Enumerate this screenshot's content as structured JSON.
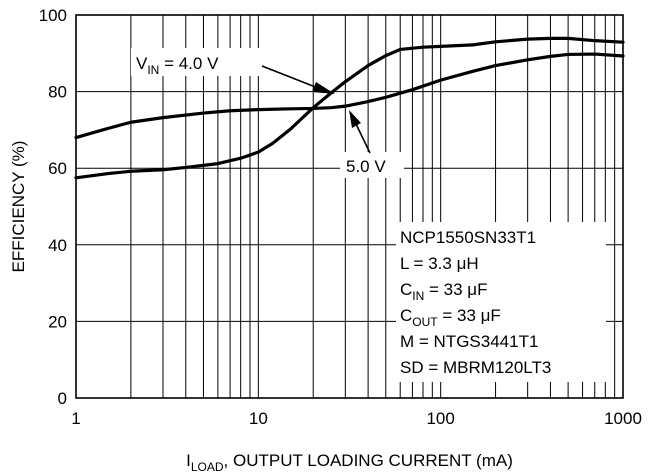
{
  "chart_data": {
    "type": "line",
    "xlabel": {
      "main": "I",
      "sub": "LOAD",
      "rest": ", OUTPUT LOADING CURRENT (mA)"
    },
    "ylabel": "EFFICIENCY (%)",
    "x_scale": "log",
    "xlim": [
      1,
      1000
    ],
    "ylim": [
      0,
      100
    ],
    "x_ticks": [
      1,
      10,
      100,
      1000
    ],
    "x_tick_labels": [
      "1",
      "10",
      "100",
      "1000"
    ],
    "y_ticks": [
      0,
      20,
      40,
      60,
      80,
      100
    ],
    "y_tick_labels": [
      "0",
      "20",
      "40",
      "60",
      "80",
      "100"
    ],
    "grid": true,
    "series": [
      {
        "name": "4.0 V",
        "points": [
          [
            1,
            57.5
          ],
          [
            1.5,
            58.6
          ],
          [
            2,
            59.2
          ],
          [
            3,
            59.6
          ],
          [
            4,
            60.2
          ],
          [
            6,
            61.2
          ],
          [
            8,
            62.6
          ],
          [
            10,
            64.2
          ],
          [
            12,
            66.5
          ],
          [
            15,
            70.2
          ],
          [
            20,
            75.8
          ],
          [
            25,
            79.6
          ],
          [
            30,
            82.6
          ],
          [
            40,
            86.8
          ],
          [
            50,
            89.4
          ],
          [
            60,
            91.0
          ],
          [
            80,
            91.6
          ],
          [
            100,
            91.8
          ],
          [
            150,
            92.2
          ],
          [
            200,
            93.0
          ],
          [
            300,
            93.7
          ],
          [
            400,
            93.9
          ],
          [
            500,
            93.9
          ],
          [
            700,
            93.3
          ],
          [
            1000,
            92.9
          ]
        ]
      },
      {
        "name": "5.0 V",
        "points": [
          [
            1,
            68.0
          ],
          [
            1.5,
            70.4
          ],
          [
            2,
            72.0
          ],
          [
            3,
            73.2
          ],
          [
            5,
            74.4
          ],
          [
            7,
            75.0
          ],
          [
            10,
            75.3
          ],
          [
            15,
            75.5
          ],
          [
            20,
            75.6
          ],
          [
            25,
            75.8
          ],
          [
            30,
            76.2
          ],
          [
            40,
            77.4
          ],
          [
            50,
            78.5
          ],
          [
            70,
            80.5
          ],
          [
            100,
            83.0
          ],
          [
            150,
            85.3
          ],
          [
            200,
            86.8
          ],
          [
            300,
            88.3
          ],
          [
            400,
            89.2
          ],
          [
            500,
            89.7
          ],
          [
            700,
            89.8
          ],
          [
            1000,
            89.3
          ]
        ]
      }
    ],
    "annotations": [
      {
        "main": "V",
        "sub": "IN",
        "rest": " = 4.0 V"
      },
      {
        "text": "5.0 V"
      }
    ],
    "info_box": [
      {
        "main": "NCP1550SN33T1",
        "sub": "",
        "rest": ""
      },
      {
        "main": "L = 3.3 ",
        "sub": "",
        "rest": "μH"
      },
      {
        "main": "C",
        "sub": "IN",
        "rest": " = 33 μF"
      },
      {
        "main": "C",
        "sub": "OUT",
        "rest": " = 33 μF"
      },
      {
        "main": "M = NTGS3441T1",
        "sub": "",
        "rest": ""
      },
      {
        "main": "SD = MBRM120LT3",
        "sub": "",
        "rest": ""
      }
    ]
  }
}
